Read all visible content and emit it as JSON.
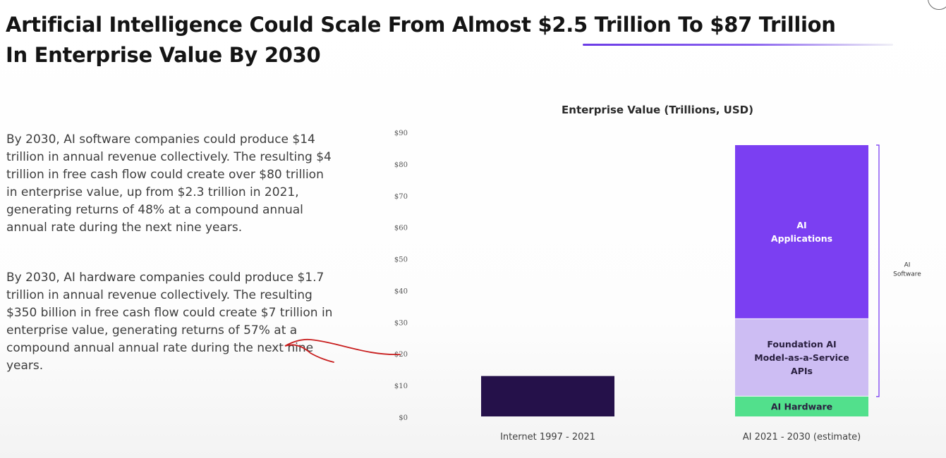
{
  "slide": {
    "title_line1": "Artificial Intelligence Could Scale From Almost $2.5 Trillion To $87 Trillion",
    "title_line2": "In Enterprise Value By 2030",
    "paragraphs": [
      "By 2030, AI software companies could produce $14 trillion in annual revenue collectively. The resulting $4 trillion in free cash flow could create over $80 trillion in enterprise value, up from $2.3 trillion in 2021, generating returns of 48% at a compound annual annual rate during the next nine years.",
      "By 2030, AI hardware companies could produce $1.7 trillion in annual revenue collectively. The resulting $350 billion in free cash flow could create $7 trillion in enterprise value, generating returns of 57% at a compound annual annual rate during the next nine years."
    ],
    "accent_color": "#6b3be6",
    "annotation_color": "#c81e1e"
  },
  "chart_data": {
    "type": "bar",
    "stacked": true,
    "title": "Enterprise Value (Trillions, USD)",
    "ylim": [
      0,
      90
    ],
    "y_ticks": [
      "$0",
      "$10",
      "$20",
      "$30",
      "$40",
      "$50",
      "$60",
      "$70",
      "$80",
      "$90"
    ],
    "categories": [
      "Internet 1997 - 2021",
      "AI 2021 - 2030 (estimate)"
    ],
    "series": [
      {
        "name": "",
        "color": "#25114a",
        "values": [
          13,
          0
        ]
      },
      {
        "name": "AI Hardware",
        "color": "#52e08c",
        "values": [
          0,
          6.5
        ],
        "label_lines": [
          "AI Hardware"
        ],
        "label_style": "dark"
      },
      {
        "name": "Foundation AI Model-as-a-Service APIs",
        "color": "#cdbdf3",
        "values": [
          0,
          24.5
        ],
        "label_lines": [
          "Foundation AI",
          "Model-as-a-Service",
          "APIs"
        ],
        "label_style": "dark"
      },
      {
        "name": "AI Applications",
        "color": "#7b3ff2",
        "values": [
          0,
          55
        ],
        "label_lines": [
          "AI",
          "Applications"
        ],
        "label_style": "light"
      }
    ],
    "bracket": {
      "label_lines": [
        "AI",
        "Software"
      ],
      "covers": [
        "Foundation AI Model-as-a-Service APIs",
        "AI Applications"
      ]
    },
    "grid": false,
    "legend": "none"
  }
}
